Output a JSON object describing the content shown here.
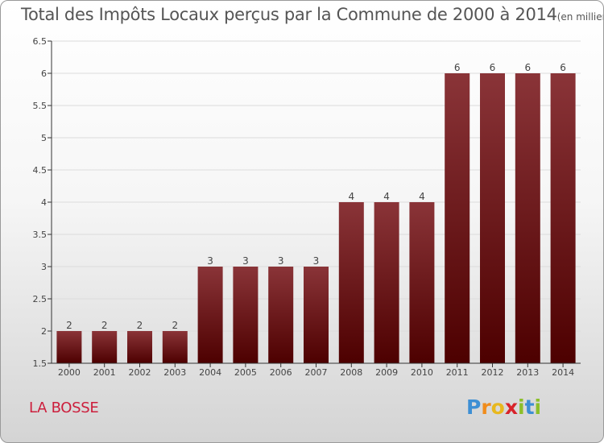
{
  "title": "Total des Impôts Locaux perçus par la Commune de 2000 à 2014",
  "title_unit": "(en milliers d'€)",
  "commune": "LA BOSSE",
  "logo": {
    "text": "Proxiti",
    "letters": [
      "P",
      "r",
      "o",
      "x",
      "i",
      "t",
      "i"
    ],
    "colors": [
      "#3d8fd4",
      "#f08c1c",
      "#e8b81e",
      "#d8232a",
      "#8cbf2a",
      "#3d8fd4",
      "#8cbf2a"
    ]
  },
  "colors": {
    "bar_top": "#8a3438",
    "bar_bottom": "#4d0000",
    "grid": "#dcdcdc",
    "axis": "#333333",
    "text": "#444444",
    "commune": "#cc1e3c"
  },
  "chart_data": {
    "type": "bar",
    "categories": [
      "2000",
      "2001",
      "2002",
      "2003",
      "2004",
      "2005",
      "2006",
      "2007",
      "2008",
      "2009",
      "2010",
      "2011",
      "2012",
      "2013",
      "2014"
    ],
    "values": [
      2,
      2,
      2,
      2,
      3,
      3,
      3,
      3,
      4,
      4,
      4,
      6,
      6,
      6,
      6
    ],
    "data_labels": [
      "2",
      "2",
      "2",
      "2",
      "3",
      "3",
      "3",
      "3",
      "4",
      "4",
      "4",
      "6",
      "6",
      "6",
      "6"
    ],
    "ylim": [
      1.5,
      6.5
    ],
    "yticks": [
      1.5,
      2,
      2.5,
      3,
      3.5,
      4,
      4.5,
      5,
      5.5,
      6,
      6.5
    ],
    "ytick_labels": [
      "1.5",
      "2",
      "2.5",
      "3",
      "3.5",
      "4",
      "4.5",
      "5",
      "5.5",
      "6",
      "6.5"
    ],
    "grid": true,
    "xlabel": "",
    "ylabel": ""
  }
}
